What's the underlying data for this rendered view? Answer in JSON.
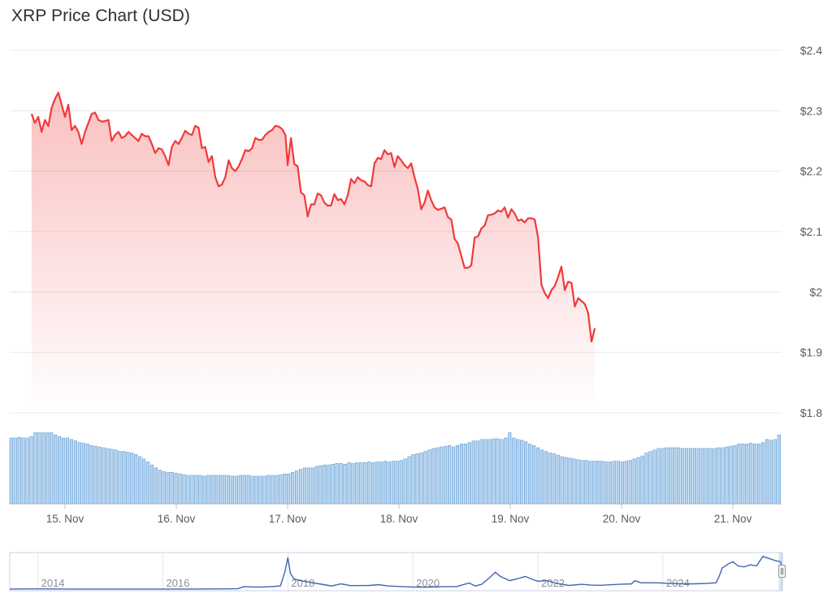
{
  "title": "XRP Price Chart (USD)",
  "colors": {
    "price_line": "#f03a3a",
    "volume_fill": "#b8d4ee",
    "volume_stroke": "#5b9bd5",
    "navigator_line": "#3e66b3",
    "grid": "#e6e8ec"
  },
  "chart_data": {
    "type": "line",
    "x_unit": "day offset from 15 Nov (tick positions)",
    "ylim": [
      1.8,
      2.4
    ],
    "y_ticks": [
      {
        "value": 2.4,
        "label": "$2.4"
      },
      {
        "value": 2.3,
        "label": "$2.3"
      },
      {
        "value": 2.2,
        "label": "$2.2"
      },
      {
        "value": 2.1,
        "label": "$2.1"
      },
      {
        "value": 2,
        "label": "$2"
      },
      {
        "value": 1.9,
        "label": "$1.9"
      },
      {
        "value": 1.8,
        "label": "$1.8"
      }
    ],
    "x_ticks": [
      {
        "value": 0,
        "label": "15. Nov"
      },
      {
        "value": 1,
        "label": "16. Nov"
      },
      {
        "value": 2,
        "label": "17. Nov"
      },
      {
        "value": 3,
        "label": "18. Nov"
      },
      {
        "value": 4,
        "label": "19. Nov"
      },
      {
        "value": 5,
        "label": "20. Nov"
      },
      {
        "value": 6,
        "label": "21. Nov"
      }
    ],
    "xlim": [
      -0.3,
      6.55
    ],
    "price": [
      [
        -0.3,
        2.295
      ],
      [
        -0.27,
        2.28
      ],
      [
        -0.24,
        2.29
      ],
      [
        -0.21,
        2.265
      ],
      [
        -0.18,
        2.285
      ],
      [
        -0.15,
        2.275
      ],
      [
        -0.12,
        2.305
      ],
      [
        -0.09,
        2.32
      ],
      [
        -0.06,
        2.33
      ],
      [
        -0.03,
        2.31
      ],
      [
        0.0,
        2.29
      ],
      [
        0.03,
        2.31
      ],
      [
        0.06,
        2.268
      ],
      [
        0.09,
        2.275
      ],
      [
        0.12,
        2.265
      ],
      [
        0.15,
        2.245
      ],
      [
        0.18,
        2.265
      ],
      [
        0.21,
        2.28
      ],
      [
        0.24,
        2.295
      ],
      [
        0.27,
        2.297
      ],
      [
        0.3,
        2.285
      ],
      [
        0.33,
        2.282
      ],
      [
        0.36,
        2.283
      ],
      [
        0.39,
        2.285
      ],
      [
        0.42,
        2.25
      ],
      [
        0.45,
        2.26
      ],
      [
        0.48,
        2.265
      ],
      [
        0.51,
        2.255
      ],
      [
        0.54,
        2.258
      ],
      [
        0.57,
        2.265
      ],
      [
        0.6,
        2.26
      ],
      [
        0.63,
        2.255
      ],
      [
        0.66,
        2.25
      ],
      [
        0.69,
        2.262
      ],
      [
        0.72,
        2.258
      ],
      [
        0.75,
        2.258
      ],
      [
        0.78,
        2.245
      ],
      [
        0.81,
        2.23
      ],
      [
        0.84,
        2.238
      ],
      [
        0.87,
        2.236
      ],
      [
        0.9,
        2.225
      ],
      [
        0.93,
        2.21
      ],
      [
        0.96,
        2.24
      ],
      [
        0.99,
        2.25
      ],
      [
        1.02,
        2.245
      ],
      [
        1.05,
        2.255
      ],
      [
        1.08,
        2.267
      ],
      [
        1.11,
        2.262
      ],
      [
        1.14,
        2.26
      ],
      [
        1.17,
        2.275
      ],
      [
        1.2,
        2.272
      ],
      [
        1.23,
        2.238
      ],
      [
        1.26,
        2.24
      ],
      [
        1.29,
        2.215
      ],
      [
        1.32,
        2.225
      ],
      [
        1.35,
        2.19
      ],
      [
        1.38,
        2.175
      ],
      [
        1.41,
        2.178
      ],
      [
        1.44,
        2.19
      ],
      [
        1.47,
        2.218
      ],
      [
        1.5,
        2.205
      ],
      [
        1.53,
        2.2
      ],
      [
        1.56,
        2.208
      ],
      [
        1.59,
        2.22
      ],
      [
        1.62,
        2.235
      ],
      [
        1.65,
        2.233
      ],
      [
        1.68,
        2.238
      ],
      [
        1.71,
        2.255
      ],
      [
        1.74,
        2.252
      ],
      [
        1.77,
        2.252
      ],
      [
        1.8,
        2.26
      ],
      [
        1.83,
        2.265
      ],
      [
        1.86,
        2.268
      ],
      [
        1.89,
        2.275
      ],
      [
        1.92,
        2.274
      ],
      [
        1.95,
        2.27
      ],
      [
        1.98,
        2.26
      ],
      [
        2.0,
        2.21
      ],
      [
        2.03,
        2.255
      ],
      [
        2.06,
        2.212
      ],
      [
        2.09,
        2.208
      ],
      [
        2.12,
        2.165
      ],
      [
        2.15,
        2.16
      ],
      [
        2.18,
        2.125
      ],
      [
        2.21,
        2.145
      ],
      [
        2.24,
        2.145
      ],
      [
        2.27,
        2.163
      ],
      [
        2.3,
        2.16
      ],
      [
        2.33,
        2.148
      ],
      [
        2.36,
        2.143
      ],
      [
        2.39,
        2.143
      ],
      [
        2.42,
        2.162
      ],
      [
        2.45,
        2.152
      ],
      [
        2.48,
        2.154
      ],
      [
        2.51,
        2.145
      ],
      [
        2.54,
        2.16
      ],
      [
        2.57,
        2.187
      ],
      [
        2.6,
        2.18
      ],
      [
        2.63,
        2.19
      ],
      [
        2.66,
        2.185
      ],
      [
        2.69,
        2.183
      ],
      [
        2.72,
        2.177
      ],
      [
        2.75,
        2.175
      ],
      [
        2.78,
        2.213
      ],
      [
        2.81,
        2.222
      ],
      [
        2.84,
        2.22
      ],
      [
        2.87,
        2.235
      ],
      [
        2.9,
        2.228
      ],
      [
        2.93,
        2.23
      ],
      [
        2.96,
        2.207
      ],
      [
        2.99,
        2.225
      ],
      [
        3.02,
        2.218
      ],
      [
        3.05,
        2.21
      ],
      [
        3.08,
        2.205
      ],
      [
        3.11,
        2.213
      ],
      [
        3.14,
        2.19
      ],
      [
        3.17,
        2.17
      ],
      [
        3.2,
        2.137
      ],
      [
        3.23,
        2.148
      ],
      [
        3.26,
        2.168
      ],
      [
        3.29,
        2.152
      ],
      [
        3.32,
        2.14
      ],
      [
        3.35,
        2.136
      ],
      [
        3.38,
        2.138
      ],
      [
        3.41,
        2.14
      ],
      [
        3.44,
        2.124
      ],
      [
        3.47,
        2.12
      ],
      [
        3.5,
        2.088
      ],
      [
        3.53,
        2.08
      ],
      [
        3.56,
        2.06
      ],
      [
        3.59,
        2.04
      ],
      [
        3.62,
        2.04
      ],
      [
        3.65,
        2.044
      ],
      [
        3.68,
        2.09
      ],
      [
        3.71,
        2.092
      ],
      [
        3.74,
        2.105
      ],
      [
        3.77,
        2.11
      ],
      [
        3.8,
        2.127
      ],
      [
        3.83,
        2.128
      ],
      [
        3.86,
        2.13
      ],
      [
        3.89,
        2.135
      ],
      [
        3.92,
        2.133
      ],
      [
        3.95,
        2.14
      ],
      [
        3.98,
        2.123
      ],
      [
        4.01,
        2.137
      ],
      [
        4.04,
        2.13
      ],
      [
        4.07,
        2.118
      ],
      [
        4.1,
        2.12
      ],
      [
        4.13,
        2.115
      ],
      [
        4.16,
        2.122
      ],
      [
        4.19,
        2.122
      ],
      [
        4.22,
        2.12
      ],
      [
        4.25,
        2.09
      ],
      [
        4.28,
        2.012
      ],
      [
        4.31,
        1.998
      ],
      [
        4.34,
        1.99
      ],
      [
        4.37,
        2.003
      ],
      [
        4.4,
        2.01
      ],
      [
        4.43,
        2.025
      ],
      [
        4.46,
        2.042
      ],
      [
        4.49,
        2.003
      ],
      [
        4.52,
        2.017
      ],
      [
        4.55,
        2.015
      ],
      [
        4.58,
        1.976
      ],
      [
        4.61,
        1.99
      ],
      [
        4.64,
        1.985
      ],
      [
        4.67,
        1.98
      ],
      [
        4.7,
        1.965
      ],
      [
        4.73,
        1.918
      ],
      [
        4.76,
        1.94
      ]
    ],
    "volume": [
      0.88,
      0.88,
      0.89,
      0.88,
      0.88,
      0.9,
      0.95,
      0.95,
      0.95,
      0.95,
      0.95,
      0.92,
      0.9,
      0.88,
      0.88,
      0.86,
      0.84,
      0.82,
      0.81,
      0.8,
      0.78,
      0.77,
      0.76,
      0.75,
      0.74,
      0.73,
      0.72,
      0.7,
      0.7,
      0.69,
      0.68,
      0.66,
      0.63,
      0.6,
      0.56,
      0.52,
      0.48,
      0.45,
      0.43,
      0.42,
      0.42,
      0.41,
      0.4,
      0.39,
      0.38,
      0.38,
      0.38,
      0.38,
      0.37,
      0.38,
      0.38,
      0.38,
      0.38,
      0.38,
      0.38,
      0.37,
      0.37,
      0.38,
      0.38,
      0.38,
      0.37,
      0.37,
      0.37,
      0.37,
      0.38,
      0.38,
      0.38,
      0.39,
      0.4,
      0.4,
      0.42,
      0.44,
      0.46,
      0.48,
      0.48,
      0.48,
      0.5,
      0.51,
      0.52,
      0.52,
      0.53,
      0.54,
      0.54,
      0.53,
      0.55,
      0.54,
      0.55,
      0.55,
      0.55,
      0.56,
      0.55,
      0.56,
      0.56,
      0.57,
      0.56,
      0.57,
      0.57,
      0.58,
      0.6,
      0.63,
      0.66,
      0.67,
      0.68,
      0.7,
      0.72,
      0.74,
      0.75,
      0.76,
      0.77,
      0.78,
      0.76,
      0.78,
      0.8,
      0.8,
      0.82,
      0.84,
      0.84,
      0.86,
      0.86,
      0.86,
      0.87,
      0.87,
      0.86,
      0.88,
      0.95,
      0.88,
      0.86,
      0.85,
      0.83,
      0.8,
      0.78,
      0.75,
      0.72,
      0.7,
      0.68,
      0.67,
      0.65,
      0.63,
      0.62,
      0.61,
      0.6,
      0.59,
      0.58,
      0.58,
      0.57,
      0.57,
      0.57,
      0.57,
      0.56,
      0.56,
      0.57,
      0.57,
      0.56,
      0.57,
      0.58,
      0.6,
      0.62,
      0.64,
      0.68,
      0.7,
      0.72,
      0.74,
      0.74,
      0.75,
      0.75,
      0.75,
      0.75,
      0.74,
      0.74,
      0.74,
      0.74,
      0.74,
      0.74,
      0.74,
      0.74,
      0.74,
      0.75,
      0.75,
      0.76,
      0.77,
      0.78,
      0.8,
      0.8,
      0.8,
      0.81,
      0.8,
      0.8,
      0.82,
      0.86,
      0.85,
      0.86,
      0.92
    ],
    "navigator": {
      "x_ticks": [
        {
          "value": 2014,
          "label": "2014"
        },
        {
          "value": 2016,
          "label": "2016"
        },
        {
          "value": 2018,
          "label": "2018"
        },
        {
          "value": 2020,
          "label": "2020"
        },
        {
          "value": 2022,
          "label": "2022"
        },
        {
          "value": 2024,
          "label": "2024"
        }
      ],
      "xlim": [
        2013.55,
        2025.9
      ],
      "ylim": [
        0,
        3.0
      ],
      "series": [
        [
          2013.55,
          0.01
        ],
        [
          2014.0,
          0.02
        ],
        [
          2014.5,
          0.01
        ],
        [
          2015.0,
          0.01
        ],
        [
          2015.5,
          0.01
        ],
        [
          2016.0,
          0.01
        ],
        [
          2016.5,
          0.01
        ],
        [
          2017.0,
          0.02
        ],
        [
          2017.2,
          0.05
        ],
        [
          2017.3,
          0.25
        ],
        [
          2017.45,
          0.2
        ],
        [
          2017.6,
          0.2
        ],
        [
          2017.75,
          0.25
        ],
        [
          2017.88,
          0.3
        ],
        [
          2017.95,
          1.6
        ],
        [
          2018.0,
          3.0
        ],
        [
          2018.04,
          1.5
        ],
        [
          2018.1,
          0.95
        ],
        [
          2018.2,
          0.8
        ],
        [
          2018.3,
          0.7
        ],
        [
          2018.5,
          0.5
        ],
        [
          2018.7,
          0.3
        ],
        [
          2018.85,
          0.5
        ],
        [
          2019.0,
          0.33
        ],
        [
          2019.3,
          0.35
        ],
        [
          2019.45,
          0.42
        ],
        [
          2019.6,
          0.3
        ],
        [
          2019.8,
          0.25
        ],
        [
          2020.0,
          0.2
        ],
        [
          2020.2,
          0.18
        ],
        [
          2020.45,
          0.22
        ],
        [
          2020.7,
          0.25
        ],
        [
          2020.9,
          0.58
        ],
        [
          2021.0,
          0.3
        ],
        [
          2021.1,
          0.45
        ],
        [
          2021.25,
          1.2
        ],
        [
          2021.32,
          1.6
        ],
        [
          2021.4,
          1.2
        ],
        [
          2021.55,
          0.8
        ],
        [
          2021.68,
          1.0
        ],
        [
          2021.8,
          1.2
        ],
        [
          2021.9,
          0.95
        ],
        [
          2022.0,
          0.75
        ],
        [
          2022.15,
          0.8
        ],
        [
          2022.3,
          0.55
        ],
        [
          2022.5,
          0.35
        ],
        [
          2022.7,
          0.45
        ],
        [
          2022.85,
          0.38
        ],
        [
          2023.0,
          0.36
        ],
        [
          2023.3,
          0.45
        ],
        [
          2023.5,
          0.5
        ],
        [
          2023.55,
          0.8
        ],
        [
          2023.65,
          0.6
        ],
        [
          2023.9,
          0.6
        ],
        [
          2024.1,
          0.55
        ],
        [
          2024.3,
          0.5
        ],
        [
          2024.5,
          0.5
        ],
        [
          2024.7,
          0.55
        ],
        [
          2024.85,
          0.6
        ],
        [
          2024.9,
          1.2
        ],
        [
          2024.95,
          2.0
        ],
        [
          2025.05,
          2.4
        ],
        [
          2025.12,
          2.6
        ],
        [
          2025.2,
          2.2
        ],
        [
          2025.3,
          2.1
        ],
        [
          2025.4,
          2.3
        ],
        [
          2025.5,
          2.2
        ],
        [
          2025.6,
          3.1
        ],
        [
          2025.7,
          2.9
        ],
        [
          2025.8,
          2.7
        ],
        [
          2025.88,
          2.6
        ],
        [
          2025.9,
          2.2
        ]
      ]
    }
  }
}
